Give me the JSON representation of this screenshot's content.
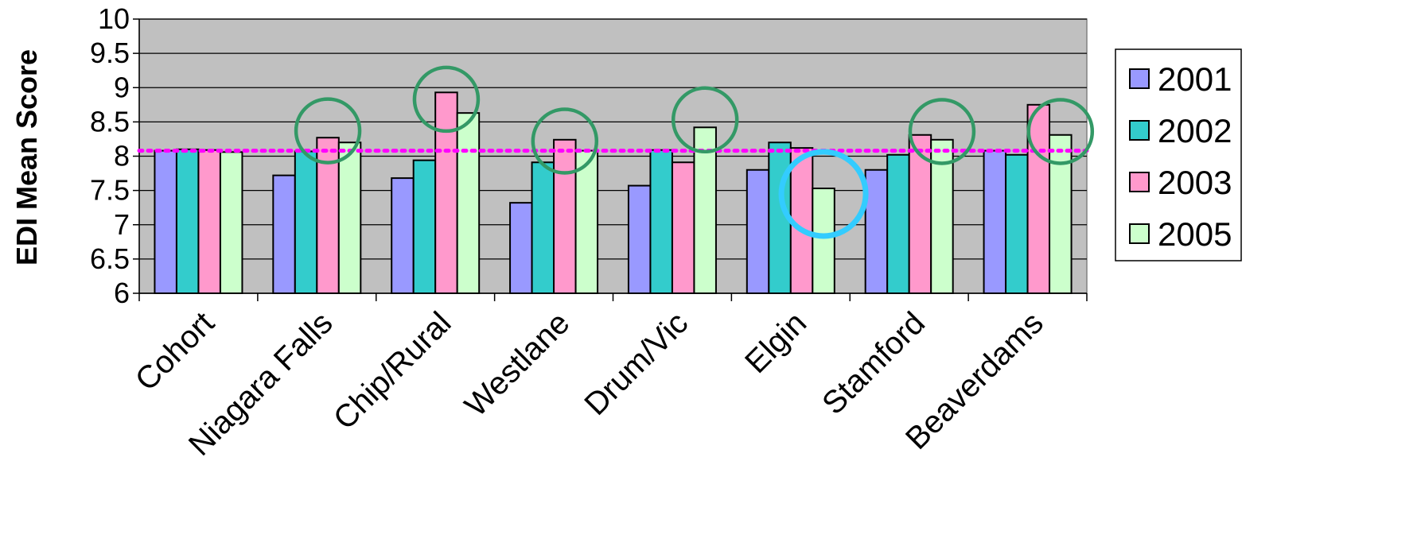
{
  "chart_data": {
    "type": "bar",
    "title": "",
    "xlabel": "",
    "ylabel": "EDI Mean Score",
    "ylim": [
      6,
      10
    ],
    "yticks": [
      "6",
      "6.5",
      "7",
      "7.5",
      "8",
      "8.5",
      "9",
      "9.5",
      "10"
    ],
    "grid": true,
    "legend_position": "right",
    "plot_background": "#c0c0c0",
    "categories": [
      "Cohort",
      "Niagara Falls",
      "Chip/Rural",
      "Westlane",
      "Drum/Vic",
      "Elgin",
      "Stamford",
      "Beaverdams"
    ],
    "series": [
      {
        "name": "2001",
        "color": "#9999ff",
        "values": [
          8.08,
          7.72,
          7.68,
          7.32,
          7.57,
          7.8,
          7.8,
          8.08
        ]
      },
      {
        "name": "2002",
        "color": "#33cccc",
        "values": [
          8.1,
          8.07,
          7.94,
          7.91,
          8.09,
          8.2,
          8.02,
          8.02
        ]
      },
      {
        "name": "2003",
        "color": "#ff99cc",
        "values": [
          8.09,
          8.27,
          8.93,
          8.24,
          7.91,
          8.12,
          8.31,
          8.75
        ]
      },
      {
        "name": "2005",
        "color": "#ccffcc",
        "values": [
          8.06,
          8.2,
          8.63,
          8.08,
          8.42,
          7.53,
          8.24,
          8.31
        ]
      }
    ],
    "reference_line": {
      "value": 8.08,
      "color": "#ff00ff",
      "style": "dotted"
    },
    "annotations": [
      {
        "type": "circle",
        "color": "#339966",
        "category_index": 1,
        "series_index": 2,
        "y": 8.37
      },
      {
        "type": "circle",
        "color": "#339966",
        "category_index": 2,
        "series_index": 2,
        "y": 8.83
      },
      {
        "type": "circle",
        "color": "#339966",
        "category_index": 3,
        "series_index": 2,
        "y": 8.22
      },
      {
        "type": "circle",
        "color": "#339966",
        "category_index": 4,
        "series_index": 3,
        "y": 8.53
      },
      {
        "type": "circle",
        "color": "#33ccff",
        "category_index": 5,
        "series_index": 3,
        "y": 7.45
      },
      {
        "type": "circle",
        "color": "#339966",
        "category_index": 6,
        "series_index": 3,
        "y": 8.36
      },
      {
        "type": "circle",
        "color": "#339966",
        "category_index": 7,
        "series_index": 3,
        "y": 8.36
      }
    ]
  }
}
